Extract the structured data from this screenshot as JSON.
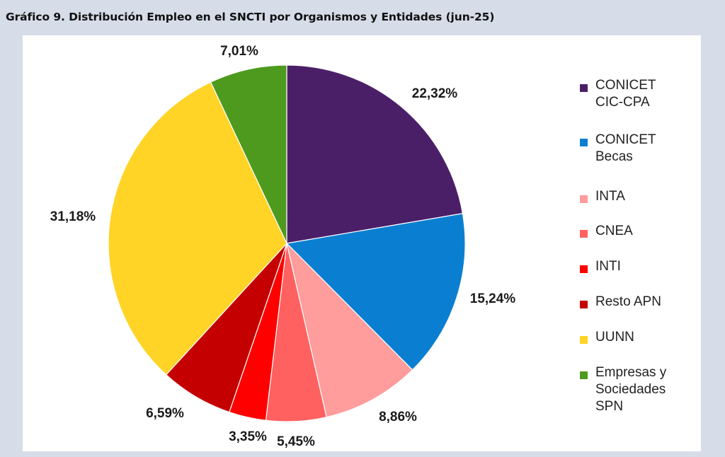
{
  "title": "Gráfico 9. Distribución Empleo en el SNCTI por Organismos y Entidades (jun-25)",
  "chart_data": {
    "type": "pie",
    "title": "Gráfico 9. Distribución Empleo en el SNCTI por Organismos y Entidades (jun-25)",
    "legend": "right",
    "slices": [
      {
        "legend": [
          "CONICET",
          "CIC-CPA"
        ],
        "value": 22.32,
        "label": "22,32%",
        "color": "#4b1f68"
      },
      {
        "legend": [
          "CONICET",
          "Becas"
        ],
        "value": 15.24,
        "label": "15,24%",
        "color": "#0a7fd1"
      },
      {
        "legend": [
          "INTA"
        ],
        "value": 8.86,
        "label": "8,86%",
        "color": "#ff9c9c"
      },
      {
        "legend": [
          "CNEA"
        ],
        "value": 5.45,
        "label": "5,45%",
        "color": "#ff6161"
      },
      {
        "legend": [
          "INTI"
        ],
        "value": 3.35,
        "label": "3,35%",
        "color": "#ff0000"
      },
      {
        "legend": [
          "Resto APN"
        ],
        "value": 6.59,
        "label": "6,59%",
        "color": "#c40000"
      },
      {
        "legend": [
          "UUNN"
        ],
        "value": 31.18,
        "label": "31,18%",
        "color": "#ffd426"
      },
      {
        "legend": [
          "Empresas y",
          "Sociedades",
          "SPN"
        ],
        "value": 7.01,
        "label": "7,01%",
        "color": "#4e9a1e"
      }
    ]
  }
}
